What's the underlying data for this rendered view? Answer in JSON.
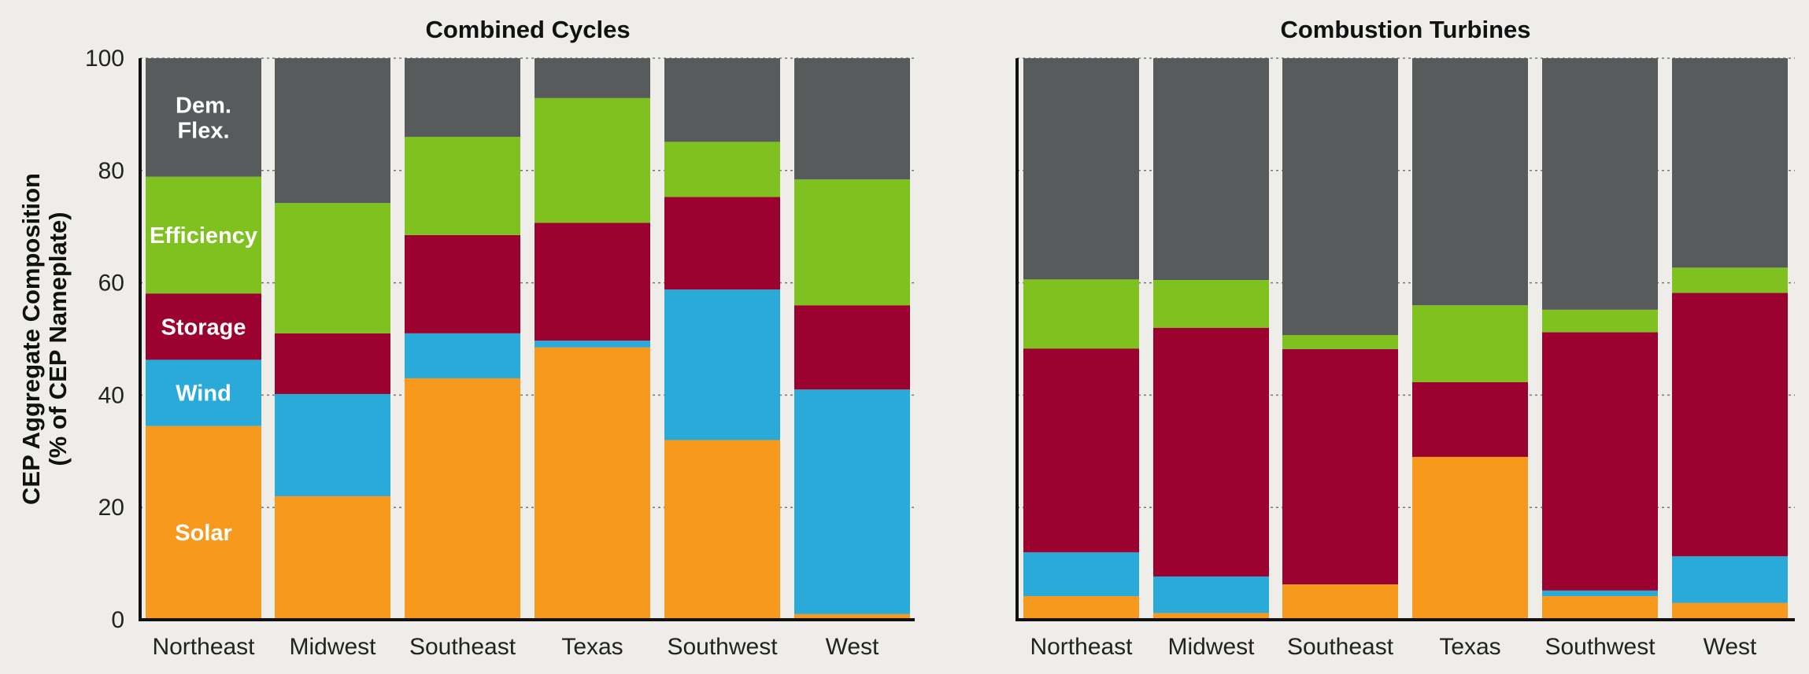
{
  "chart_data": [
    {
      "type": "bar",
      "stacked": true,
      "title": "Combined Cycles",
      "ylabel": "CEP Aggregate Composition\n(% of CEP Nameplate)",
      "ylim": [
        0,
        100
      ],
      "yticks": [
        0,
        20,
        40,
        60,
        80,
        100
      ],
      "grid": "horizontal dotted",
      "categories": [
        "Northeast",
        "Midwest",
        "Southeast",
        "Texas",
        "Southwest",
        "West"
      ],
      "series": [
        {
          "name": "Solar",
          "color": "#f7991c",
          "values": [
            34.5,
            22,
            43,
            48.5,
            32,
            1
          ]
        },
        {
          "name": "Wind",
          "color": "#29aad8",
          "values": [
            11.8,
            18.2,
            8,
            1.2,
            26.8,
            40
          ]
        },
        {
          "name": "Storage",
          "color": "#9b0230",
          "values": [
            11.8,
            10.8,
            17.5,
            21,
            16.5,
            15
          ]
        },
        {
          "name": "Efficiency",
          "color": "#7fc220",
          "values": [
            20.8,
            23.2,
            17.5,
            22.2,
            9.8,
            22.4
          ]
        },
        {
          "name": "Dem.\nFlex.",
          "color": "#585b5c",
          "values": [
            21.1,
            25.8,
            14,
            7.1,
            14.9,
            21.6
          ]
        }
      ]
    },
    {
      "type": "bar",
      "stacked": true,
      "title": "Combustion Turbines",
      "ylim": [
        0,
        100
      ],
      "grid": "horizontal dotted",
      "categories": [
        "Northeast",
        "Midwest",
        "Southeast",
        "Texas",
        "Southwest",
        "West"
      ],
      "series": [
        {
          "name": "Solar",
          "color": "#f7991c",
          "values": [
            4.2,
            1.2,
            6.3,
            29,
            4.2,
            3
          ]
        },
        {
          "name": "Wind",
          "color": "#29aad8",
          "values": [
            7.8,
            6.5,
            0,
            0,
            1,
            8.3
          ]
        },
        {
          "name": "Storage",
          "color": "#9b0230",
          "values": [
            36.3,
            44.3,
            41.9,
            13.3,
            46,
            46.9
          ]
        },
        {
          "name": "Efficiency",
          "color": "#7fc220",
          "values": [
            12.3,
            8.5,
            2.5,
            13.7,
            4,
            4.5
          ]
        },
        {
          "name": "Dem.\nFlex.",
          "color": "#585b5c",
          "values": [
            39.4,
            39.5,
            49.3,
            44,
            44.8,
            37.3
          ]
        }
      ]
    }
  ]
}
